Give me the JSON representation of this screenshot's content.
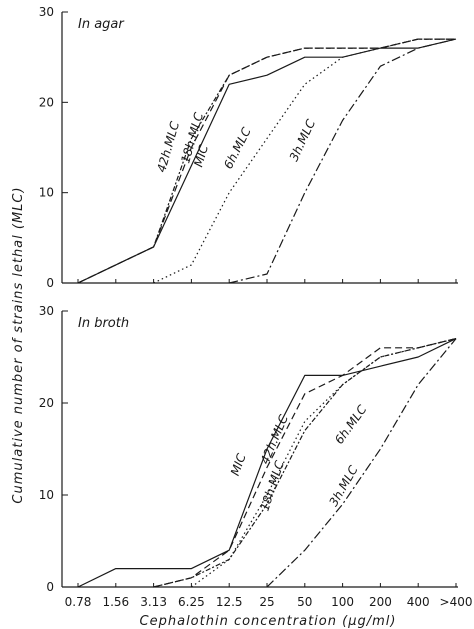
{
  "chart_data": {
    "type": "line",
    "ylabel": "Cumulative number of strains lethal (MLC)",
    "xlabel": "Cephalothin concentration (μg/ml)",
    "x_categories": [
      "0.78",
      "1.56",
      "3.13",
      "6.25",
      "12.5",
      "25",
      "50",
      "100",
      "200",
      "400",
      ">400"
    ],
    "yticks": [
      "0",
      "10",
      "20",
      "30"
    ],
    "ylim": [
      0,
      30
    ],
    "panels": [
      {
        "title": "In agar",
        "series": [
          {
            "name": "MIC",
            "style": "solid",
            "values": [
              0,
              2,
              4,
              13,
              22,
              23,
              25,
              25,
              26,
              26,
              27
            ],
            "label_angle": -74
          },
          {
            "name": "18h.MLC",
            "style": "dashed",
            "values": [
              0,
              2,
              4,
              15,
              23,
              25,
              26,
              26,
              26,
              27,
              27
            ],
            "label_angle": -74
          },
          {
            "name": "42h.MLC",
            "style": "dashdot2",
            "values": [
              0,
              2,
              4,
              16,
              23,
              25,
              26,
              26,
              26,
              27,
              27
            ],
            "label_angle": -74
          },
          {
            "name": "6h.MLC",
            "style": "dotted",
            "values": [
              null,
              null,
              0,
              2,
              10,
              16,
              22,
              25,
              26,
              27,
              27
            ],
            "label_angle": -63
          },
          {
            "name": "3h.MLC",
            "style": "dashdot",
            "values": [
              null,
              null,
              null,
              null,
              0,
              1,
              10,
              18,
              24,
              26,
              27
            ],
            "label_angle": -65
          }
        ]
      },
      {
        "title": "In broth",
        "series": [
          {
            "name": "MIC",
            "style": "solid",
            "values": [
              0,
              2,
              2,
              2,
              4,
              15,
              23,
              23,
              24,
              25,
              27
            ],
            "label_angle": -70
          },
          {
            "name": "42h.MLC",
            "style": "dashed",
            "values": [
              null,
              null,
              0,
              1,
              4,
              13,
              21,
              23,
              26,
              26,
              27
            ],
            "label_angle": -67
          },
          {
            "name": "18h.MLC",
            "style": "dashdot2",
            "values": [
              null,
              null,
              0,
              1,
              3,
              9,
              17,
              22,
              25,
              26,
              27
            ],
            "label_angle": -72
          },
          {
            "name": "6h.MLC",
            "style": "dotted",
            "values": [
              null,
              null,
              null,
              0,
              3,
              10,
              18,
              22,
              25,
              26,
              27
            ],
            "label_angle": -54
          },
          {
            "name": "3h.MLC",
            "style": "dashdot",
            "values": [
              null,
              null,
              null,
              null,
              null,
              0,
              4,
              9,
              15,
              22,
              27
            ],
            "label_angle": -60
          }
        ]
      }
    ]
  }
}
